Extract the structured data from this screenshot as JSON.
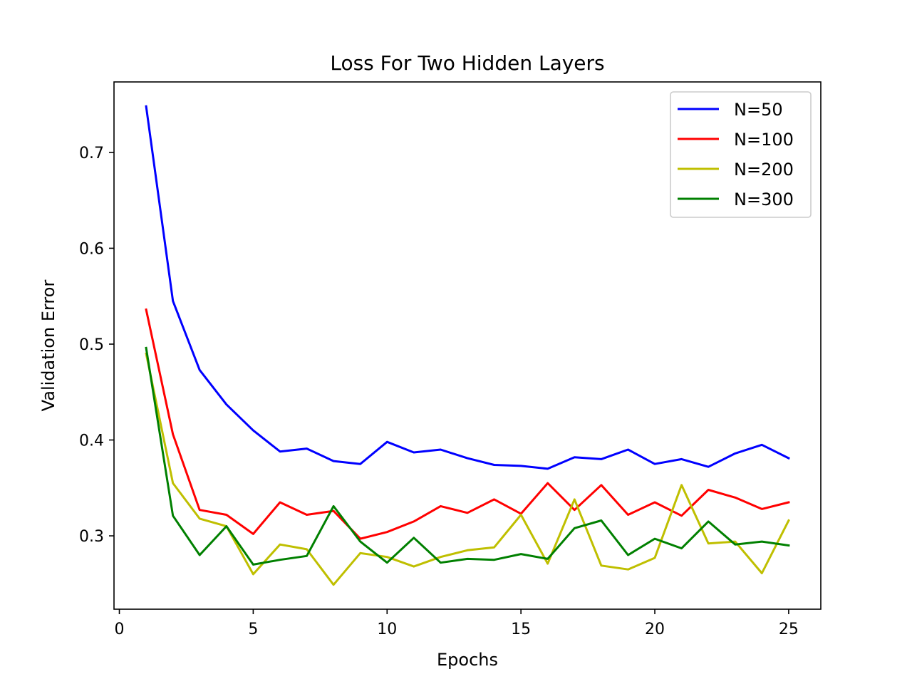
{
  "chart_data": {
    "type": "line",
    "title": "Loss For Two Hidden Layers",
    "xlabel": "Epochs",
    "ylabel": "Validation Error",
    "xlim": [
      -0.2,
      26.2
    ],
    "ylim": [
      0.2235,
      0.7735
    ],
    "xticks": [
      0,
      5,
      10,
      15,
      20,
      25
    ],
    "yticks": [
      0.3,
      0.4,
      0.5,
      0.6,
      0.7
    ],
    "xtick_labels": [
      "0",
      "5",
      "10",
      "15",
      "20",
      "25"
    ],
    "ytick_labels": [
      "0.3",
      "0.4",
      "0.5",
      "0.6",
      "0.7"
    ],
    "grid": false,
    "legend_position": "top-right",
    "x": [
      1,
      2,
      3,
      4,
      5,
      6,
      7,
      8,
      9,
      10,
      11,
      12,
      13,
      14,
      15,
      16,
      17,
      18,
      19,
      20,
      21,
      22,
      23,
      24,
      25
    ],
    "series": [
      {
        "name": "N=50",
        "color": "#0000ff",
        "values": [
          0.748,
          0.545,
          0.473,
          0.437,
          0.41,
          0.388,
          0.391,
          0.378,
          0.375,
          0.398,
          0.387,
          0.39,
          0.381,
          0.374,
          0.373,
          0.37,
          0.382,
          0.38,
          0.39,
          0.375,
          0.38,
          0.372,
          0.386,
          0.395,
          0.381
        ]
      },
      {
        "name": "N=100",
        "color": "#ff0000",
        "values": [
          0.536,
          0.406,
          0.327,
          0.322,
          0.302,
          0.335,
          0.322,
          0.326,
          0.297,
          0.304,
          0.315,
          0.331,
          0.324,
          0.338,
          0.323,
          0.355,
          0.327,
          0.353,
          0.322,
          0.335,
          0.321,
          0.348,
          0.34,
          0.328,
          0.335
        ]
      },
      {
        "name": "N=200",
        "color": "#bfbf00",
        "values": [
          0.49,
          0.355,
          0.318,
          0.31,
          0.26,
          0.291,
          0.286,
          0.249,
          0.282,
          0.278,
          0.268,
          0.278,
          0.285,
          0.288,
          0.322,
          0.271,
          0.338,
          0.269,
          0.265,
          0.277,
          0.353,
          0.292,
          0.294,
          0.261,
          0.316
        ]
      },
      {
        "name": "N=300",
        "color": "#008000",
        "values": [
          0.496,
          0.321,
          0.28,
          0.31,
          0.27,
          0.275,
          0.279,
          0.331,
          0.294,
          0.272,
          0.298,
          0.272,
          0.276,
          0.275,
          0.281,
          0.276,
          0.308,
          0.316,
          0.28,
          0.297,
          0.287,
          0.315,
          0.291,
          0.294,
          0.29
        ]
      }
    ]
  }
}
